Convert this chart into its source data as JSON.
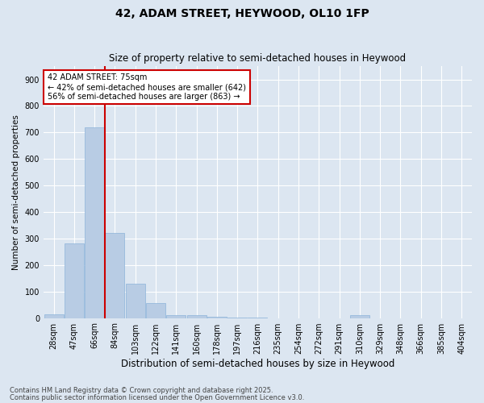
{
  "title1": "42, ADAM STREET, HEYWOOD, OL10 1FP",
  "title2": "Size of property relative to semi-detached houses in Heywood",
  "xlabel": "Distribution of semi-detached houses by size in Heywood",
  "ylabel": "Number of semi-detached properties",
  "categories": [
    "28sqm",
    "47sqm",
    "66sqm",
    "84sqm",
    "103sqm",
    "122sqm",
    "141sqm",
    "160sqm",
    "178sqm",
    "197sqm",
    "216sqm",
    "235sqm",
    "254sqm",
    "272sqm",
    "291sqm",
    "310sqm",
    "329sqm",
    "348sqm",
    "366sqm",
    "385sqm",
    "404sqm"
  ],
  "values": [
    15,
    280,
    720,
    320,
    130,
    55,
    12,
    12,
    5,
    2,
    1,
    0,
    0,
    0,
    0,
    10,
    0,
    0,
    0,
    0,
    0
  ],
  "bar_color": "#b8cce4",
  "bar_edge_color": "#8cb3d9",
  "background_color": "#dce6f1",
  "grid_color": "#ffffff",
  "vline_color": "#cc0000",
  "vline_x": 2.5,
  "annotation_title": "42 ADAM STREET: 75sqm",
  "annotation_line1": "← 42% of semi-detached houses are smaller (642)",
  "annotation_line2": "56% of semi-detached houses are larger (863) →",
  "annotation_box_color": "#ffffff",
  "annotation_box_edge": "#cc0000",
  "ylim": [
    0,
    950
  ],
  "yticks": [
    0,
    100,
    200,
    300,
    400,
    500,
    600,
    700,
    800,
    900
  ],
  "title1_fontsize": 10,
  "title2_fontsize": 8.5,
  "ylabel_fontsize": 7.5,
  "xlabel_fontsize": 8.5,
  "tick_fontsize": 7,
  "footnote1": "Contains HM Land Registry data © Crown copyright and database right 2025.",
  "footnote2": "Contains public sector information licensed under the Open Government Licence v3.0.",
  "footnote_fontsize": 6.0
}
